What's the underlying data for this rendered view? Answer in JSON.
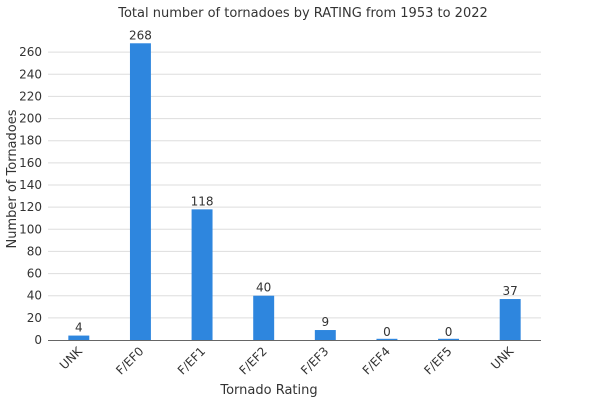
{
  "chart_data": {
    "type": "bar",
    "title": "Total number of tornadoes by RATING from 1953 to 2022",
    "xlabel": "Tornado Rating",
    "ylabel": "Number of Tornadoes",
    "categories": [
      "UNK",
      "F/EF0",
      "F/EF1",
      "F/EF2",
      "F/EF3",
      "F/EF4",
      "F/EF5",
      "UNK"
    ],
    "values": [
      4,
      268,
      118,
      40,
      9,
      0,
      0,
      37
    ],
    "ylim": [
      0,
      280
    ],
    "yticks": [
      0,
      20,
      40,
      60,
      80,
      100,
      120,
      140,
      160,
      180,
      200,
      220,
      240,
      260
    ],
    "grid": true,
    "legend": "none",
    "bar_color": "#2e86de"
  }
}
